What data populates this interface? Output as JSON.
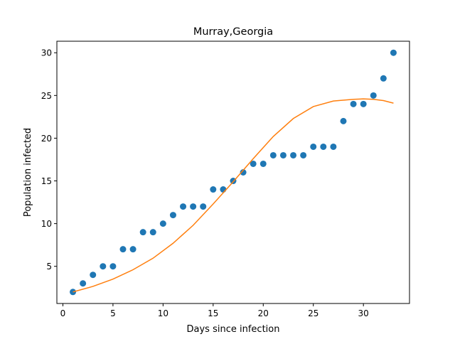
{
  "chart_data": {
    "type": "scatter",
    "title": "Murray,Georgia",
    "xlabel": "Days since infection",
    "ylabel": "Population infected",
    "xlim": [
      -0.6,
      34.6
    ],
    "ylim": [
      0.65,
      31.35
    ],
    "xticks": [
      0,
      5,
      10,
      15,
      20,
      25,
      30
    ],
    "yticks": [
      5,
      10,
      15,
      20,
      25,
      30
    ],
    "grid": false,
    "series": [
      {
        "kind": "scatter",
        "color": "#1f77b4",
        "x": [
          1,
          2,
          3,
          4,
          5,
          6,
          7,
          8,
          9,
          10,
          11,
          12,
          13,
          14,
          15,
          16,
          17,
          18,
          19,
          20,
          21,
          22,
          23,
          24,
          25,
          26,
          27,
          28,
          29,
          30,
          31,
          32,
          33
        ],
        "y": [
          2,
          3,
          4,
          5,
          5,
          7,
          7,
          9,
          9,
          10,
          11,
          12,
          12,
          12,
          14,
          14,
          15,
          16,
          17,
          17,
          18,
          18,
          18,
          18,
          19,
          19,
          19,
          22,
          24,
          24,
          25,
          27,
          30
        ]
      },
      {
        "kind": "line",
        "color": "#ff7f0e",
        "x": [
          1,
          3,
          5,
          7,
          9,
          11,
          13,
          15,
          17,
          19,
          21,
          23,
          25,
          27,
          29,
          30,
          31,
          32,
          33
        ],
        "y": [
          2.0,
          2.65,
          3.5,
          4.6,
          5.95,
          7.7,
          9.8,
          12.3,
          14.9,
          17.6,
          20.2,
          22.3,
          23.7,
          24.35,
          24.55,
          24.6,
          24.55,
          24.4,
          24.1
        ]
      }
    ]
  }
}
